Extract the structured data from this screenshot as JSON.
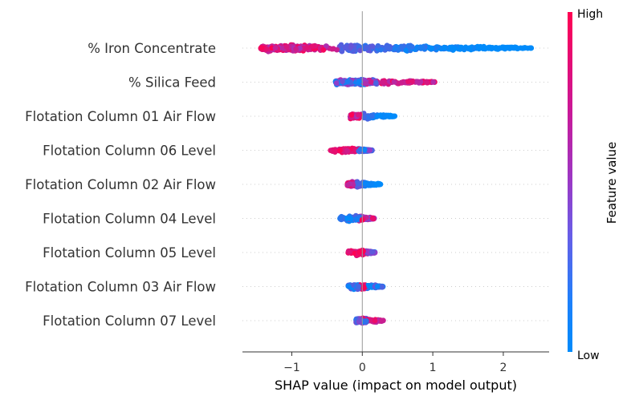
{
  "chart_data": {
    "type": "scatter",
    "subtype": "shap-beeswarm",
    "title": "",
    "xlabel": "SHAP value (impact on model output)",
    "xlim": [
      -1.7,
      2.65
    ],
    "xticks": [
      "−1",
      "0",
      "1",
      "2"
    ],
    "xtick_values": [
      -1,
      0,
      1,
      2
    ],
    "zero_line": true,
    "grid": false,
    "colorbar": {
      "label": "Feature value",
      "high_label": "High",
      "low_label": "Low",
      "low_color": "#008bfb",
      "high_color": "#ff0052"
    },
    "features": [
      {
        "name": "% Iron Concentrate",
        "min": -1.52,
        "max": 2.43,
        "skew": "low-right"
      },
      {
        "name": "% Silica Feed",
        "min": -0.63,
        "max": 1.05,
        "skew": "high-right"
      },
      {
        "name": "Flotation Column 01 Air Flow",
        "min": -0.18,
        "max": 0.46,
        "skew": "low-right"
      },
      {
        "name": "Flotation Column 06 Level",
        "min": -0.45,
        "max": 0.14,
        "skew": "high-left"
      },
      {
        "name": "Flotation Column 02 Air Flow",
        "min": -0.22,
        "max": 0.26,
        "skew": "low-right"
      },
      {
        "name": "Flotation Column 04 Level",
        "min": -0.32,
        "max": 0.17,
        "skew": "low-left"
      },
      {
        "name": "Flotation Column 05 Level",
        "min": -0.2,
        "max": 0.18,
        "skew": "high-left"
      },
      {
        "name": "Flotation Column 03 Air Flow",
        "min": -0.2,
        "max": 0.3,
        "skew": "low-both"
      },
      {
        "name": "Flotation Column 07 Level",
        "min": -0.16,
        "max": 0.3,
        "skew": "high-right"
      }
    ]
  }
}
